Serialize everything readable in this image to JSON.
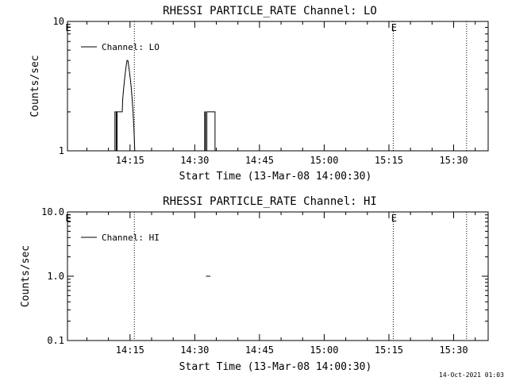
{
  "footer": {
    "timestamp": "14-Oct-2021 01:03"
  },
  "chart_data": [
    {
      "type": "line",
      "title": "RHESSI PARTICLE_RATE Channel: LO",
      "xlabel": "Start Time (13-Mar-08 14:00:30)",
      "ylabel": "Counts/sec",
      "yscale": "log",
      "ylim": [
        1,
        10
      ],
      "ytick_labels": [
        "1",
        "10"
      ],
      "ytick_values": [
        1,
        10
      ],
      "xlim_minutes": [
        0.5,
        98
      ],
      "xtick_labels": [
        "14:15",
        "14:30",
        "14:45",
        "15:00",
        "15:15",
        "15:30"
      ],
      "xtick_minutes": [
        15,
        30,
        45,
        60,
        75,
        90
      ],
      "legend": {
        "entries": [
          "Channel: LO"
        ],
        "position": "top-left"
      },
      "vlines_minutes": [
        16,
        76,
        93
      ],
      "markers": [
        {
          "label": "E",
          "minute": 0.5
        },
        {
          "label": "E",
          "minute": 76
        }
      ],
      "series": [
        {
          "name": "Channel: LO",
          "segments": [
            [
              [
                11.5,
                1
              ],
              [
                11.5,
                2
              ],
              [
                11.8,
                2
              ],
              [
                11.8,
                1
              ],
              [
                12,
                1
              ],
              [
                12,
                2
              ],
              [
                13.2,
                2
              ],
              [
                13.3,
                2.5
              ],
              [
                13.5,
                3
              ],
              [
                13.7,
                3.5
              ],
              [
                13.9,
                4
              ],
              [
                14.1,
                4.5
              ],
              [
                14.3,
                5
              ],
              [
                14.5,
                5
              ],
              [
                14.7,
                4.5
              ],
              [
                14.9,
                4
              ],
              [
                15.1,
                3.5
              ],
              [
                15.3,
                3
              ],
              [
                15.5,
                2.5
              ],
              [
                15.7,
                2
              ],
              [
                15.9,
                1.5
              ],
              [
                16.1,
                1
              ]
            ],
            [
              [
                32.3,
                1
              ],
              [
                32.3,
                2
              ],
              [
                32.5,
                2
              ],
              [
                32.5,
                1
              ],
              [
                32.8,
                1
              ],
              [
                32.8,
                2
              ],
              [
                34.7,
                2
              ],
              [
                34.7,
                1
              ]
            ]
          ]
        }
      ]
    },
    {
      "type": "line",
      "title": "RHESSI PARTICLE_RATE Channel: HI",
      "xlabel": "Start Time (13-Mar-08 14:00:30)",
      "ylabel": "Counts/sec",
      "yscale": "log",
      "ylim": [
        0.1,
        10
      ],
      "ytick_labels": [
        "0.1",
        "1.0",
        "10.0"
      ],
      "ytick_values": [
        0.1,
        1,
        10
      ],
      "xlim_minutes": [
        0.5,
        98
      ],
      "xtick_labels": [
        "14:15",
        "14:30",
        "14:45",
        "15:00",
        "15:15",
        "15:30"
      ],
      "xtick_minutes": [
        15,
        30,
        45,
        60,
        75,
        90
      ],
      "legend": {
        "entries": [
          "Channel: HI"
        ],
        "position": "top-left"
      },
      "vlines_minutes": [
        16,
        76,
        93
      ],
      "markers": [
        {
          "label": "E",
          "minute": 0.5
        },
        {
          "label": "E",
          "minute": 76
        }
      ],
      "series": [
        {
          "name": "Channel: HI",
          "segments": [
            [
              [
                32.6,
                1
              ],
              [
                33.6,
                1
              ]
            ]
          ]
        }
      ]
    }
  ]
}
